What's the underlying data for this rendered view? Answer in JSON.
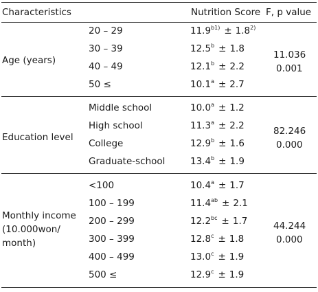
{
  "header": {
    "characteristics": "Characteristics",
    "score": "Nutrition Score",
    "stat": "F, p value"
  },
  "groups": [
    {
      "label_lines": [
        "Age (years)"
      ],
      "f": "11.036",
      "p": "0.001",
      "rows": [
        {
          "level": "20 – 29",
          "mean": "11.9",
          "sup": "b1)",
          "pm": "±",
          "sd": "1.8",
          "sd_sup": "2)"
        },
        {
          "level": "30 – 39",
          "mean": "12.5",
          "sup": "b",
          "pm": "±",
          "sd": "1.8",
          "sd_sup": ""
        },
        {
          "level": "40 – 49",
          "mean": "12.1",
          "sup": "b",
          "pm": "±",
          "sd": "2.2",
          "sd_sup": ""
        },
        {
          "level": "50 ≤",
          "mean": "10.1",
          "sup": "a",
          "pm": "±",
          "sd": "2.7",
          "sd_sup": ""
        }
      ]
    },
    {
      "label_lines": [
        "Education level"
      ],
      "f": "82.246",
      "p": "0.000",
      "rows": [
        {
          "level": "Middle school",
          "mean": "10.0",
          "sup": "a",
          "pm": "±",
          "sd": "1.2",
          "sd_sup": ""
        },
        {
          "level": "High school",
          "mean": "11.3",
          "sup": "a",
          "pm": "±",
          "sd": "2.2",
          "sd_sup": ""
        },
        {
          "level": "College",
          "mean": "12.9",
          "sup": "b",
          "pm": "±",
          "sd": "1.6",
          "sd_sup": ""
        },
        {
          "level": "Graduate-school",
          "mean": "13.4",
          "sup": "b",
          "pm": "±",
          "sd": "1.9",
          "sd_sup": ""
        }
      ]
    },
    {
      "label_lines": [
        "Monthly income",
        "(10.000won/",
        "month)"
      ],
      "f": "44.244",
      "p": "0.000",
      "rows": [
        {
          "level": "<100",
          "mean": "10.4",
          "sup": "a",
          "pm": "±",
          "sd": "1.7",
          "sd_sup": ""
        },
        {
          "level": "100 – 199",
          "mean": "11.4",
          "sup": "ab",
          "pm": "±",
          "sd": "2.1",
          "sd_sup": ""
        },
        {
          "level": "200 – 299",
          "mean": "12.2",
          "sup": "bc",
          "pm": "±",
          "sd": "1.7",
          "sd_sup": ""
        },
        {
          "level": "300 – 399",
          "mean": "12.8",
          "sup": "c",
          "pm": "±",
          "sd": "1.8",
          "sd_sup": ""
        },
        {
          "level": "400 – 499",
          "mean": "13.0",
          "sup": "c",
          "pm": "±",
          "sd": "1.9",
          "sd_sup": ""
        },
        {
          "level": "500 ≤",
          "mean": "12.9",
          "sup": "c",
          "pm": "±",
          "sd": "1.9",
          "sd_sup": ""
        }
      ]
    }
  ]
}
